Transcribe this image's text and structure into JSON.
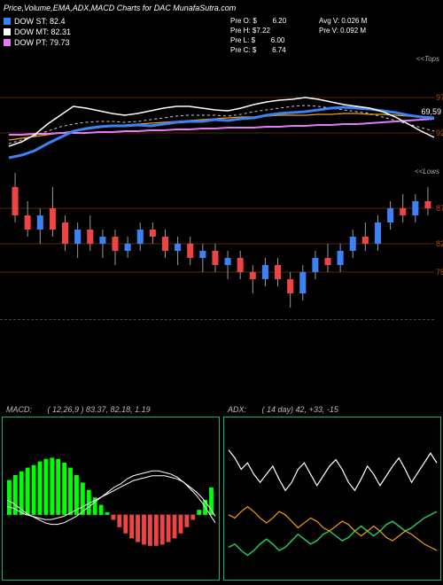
{
  "title": "Price,Volume,EMA,ADX,MACD Charts for DAC MunafaSutra.com",
  "legend": [
    {
      "label": "DOW ST: 82.4",
      "color": "#3b82f6"
    },
    {
      "label": "DOW MT: 82.31",
      "color": "#ffffff"
    },
    {
      "label": "DOW PT: 79.73",
      "color": "#e879f9"
    }
  ],
  "pre": {
    "o": {
      "k": "Pre   O: $",
      "v": "6.20"
    },
    "h": {
      "k": "Pre   H: $7.22",
      "v": ""
    },
    "l": {
      "k": "Pre   L: $",
      "v": "6.00"
    },
    "c": {
      "k": "Pre   C: $",
      "v": "6.74"
    }
  },
  "avg": {
    "v1": {
      "k": "Avg V: 0.026  M",
      "v": ""
    },
    "v2": {
      "k": "Pre  V: 0.092  M",
      "v": ""
    }
  },
  "ema_axis": {
    "top": "<<Tops",
    "bot": "<<Lows",
    "tag": "69,59",
    "grid": [
      "97",
      "92"
    ]
  },
  "ema_lines": {
    "colors": {
      "white": "#ffffff",
      "blue": "#3b82f6",
      "magenta": "#e879f9",
      "orange": "#f59e0b",
      "dash": "#cccccc"
    },
    "blue": [
      108,
      105,
      100,
      92,
      85,
      78,
      75,
      73,
      72,
      72,
      71,
      72,
      70,
      68,
      67,
      67,
      65,
      66,
      64,
      63,
      60,
      58,
      57,
      56,
      54,
      52,
      51,
      52,
      53,
      55,
      57,
      60,
      62,
      63
    ],
    "white": [
      95,
      90,
      82,
      70,
      60,
      50,
      52,
      55,
      58,
      60,
      58,
      55,
      52,
      50,
      50,
      52,
      54,
      55,
      52,
      48,
      45,
      43,
      42,
      40,
      42,
      45,
      48,
      50,
      52,
      56,
      62,
      70,
      78,
      85
    ],
    "magenta": [
      38,
      38,
      39,
      39,
      40,
      40,
      40,
      41,
      41,
      42,
      42,
      43,
      43,
      44,
      44,
      45,
      45,
      46,
      46,
      46,
      47,
      47,
      48,
      48,
      49,
      49,
      50,
      50,
      51,
      52,
      53,
      54,
      55,
      56
    ],
    "orange": [
      88,
      86,
      84,
      82,
      80,
      78,
      76,
      74,
      72,
      71,
      70,
      69,
      68,
      67,
      66,
      65,
      64,
      63,
      62,
      62,
      61,
      60,
      60,
      60,
      59,
      59,
      58,
      58,
      59,
      59,
      60,
      61,
      62,
      64
    ],
    "dash": [
      92,
      88,
      83,
      78,
      73,
      70,
      68,
      67,
      67,
      68,
      67,
      65,
      63,
      61,
      60,
      60,
      60,
      61,
      59,
      56,
      54,
      52,
      50,
      49,
      50,
      52,
      54,
      56,
      58,
      62,
      66,
      70,
      74,
      78
    ]
  },
  "candle": {
    "grid": [
      "87",
      "82",
      "78"
    ],
    "data": [
      {
        "o": 90,
        "c": 86,
        "h": 92,
        "l": 85
      },
      {
        "o": 86,
        "c": 84,
        "h": 88,
        "l": 83
      },
      {
        "o": 84,
        "c": 86,
        "h": 87,
        "l": 82
      },
      {
        "o": 87,
        "c": 84,
        "h": 90,
        "l": 83
      },
      {
        "o": 85,
        "c": 82,
        "h": 86,
        "l": 81
      },
      {
        "o": 82,
        "c": 84,
        "h": 85,
        "l": 80
      },
      {
        "o": 84,
        "c": 82,
        "h": 86,
        "l": 81
      },
      {
        "o": 82,
        "c": 83,
        "h": 84,
        "l": 80
      },
      {
        "o": 83,
        "c": 81,
        "h": 84,
        "l": 79
      },
      {
        "o": 81,
        "c": 82,
        "h": 83,
        "l": 80
      },
      {
        "o": 82,
        "c": 84,
        "h": 85,
        "l": 81
      },
      {
        "o": 84,
        "c": 83,
        "h": 85,
        "l": 82
      },
      {
        "o": 83,
        "c": 81,
        "h": 84,
        "l": 80
      },
      {
        "o": 81,
        "c": 82,
        "h": 83,
        "l": 79
      },
      {
        "o": 82,
        "c": 80,
        "h": 83,
        "l": 79
      },
      {
        "o": 80,
        "c": 81,
        "h": 82,
        "l": 78
      },
      {
        "o": 81,
        "c": 79,
        "h": 82,
        "l": 78
      },
      {
        "o": 79,
        "c": 80,
        "h": 81,
        "l": 77
      },
      {
        "o": 80,
        "c": 78,
        "h": 81,
        "l": 77
      },
      {
        "o": 78,
        "c": 77,
        "h": 79,
        "l": 75
      },
      {
        "o": 77,
        "c": 79,
        "h": 80,
        "l": 76
      },
      {
        "o": 79,
        "c": 77,
        "h": 80,
        "l": 76
      },
      {
        "o": 77,
        "c": 75,
        "h": 78,
        "l": 73
      },
      {
        "o": 75,
        "c": 78,
        "h": 79,
        "l": 74
      },
      {
        "o": 78,
        "c": 80,
        "h": 81,
        "l": 77
      },
      {
        "o": 80,
        "c": 79,
        "h": 82,
        "l": 78
      },
      {
        "o": 79,
        "c": 81,
        "h": 82,
        "l": 78
      },
      {
        "o": 81,
        "c": 83,
        "h": 84,
        "l": 80
      },
      {
        "o": 83,
        "c": 82,
        "h": 85,
        "l": 81
      },
      {
        "o": 82,
        "c": 85,
        "h": 86,
        "l": 81
      },
      {
        "o": 85,
        "c": 87,
        "h": 88,
        "l": 84
      },
      {
        "o": 87,
        "c": 86,
        "h": 89,
        "l": 85
      },
      {
        "o": 86,
        "c": 88,
        "h": 89,
        "l": 85
      },
      {
        "o": 88,
        "c": 87,
        "h": 90,
        "l": 86
      }
    ],
    "scale": {
      "min": 72,
      "max": 92
    },
    "colors": {
      "up": "#3b82f6",
      "down": "#ef4444",
      "wick": "#999"
    }
  },
  "macd": {
    "label": "MACD:",
    "params": "( 12,26,9 ) 83.37,  82.18,   1.19",
    "hist": [
      28,
      32,
      35,
      38,
      40,
      43,
      45,
      46,
      45,
      42,
      38,
      32,
      26,
      20,
      14,
      8,
      2,
      -4,
      -10,
      -15,
      -19,
      -22,
      -24,
      -25,
      -25,
      -24,
      -22,
      -19,
      -15,
      -10,
      -4,
      4,
      12,
      22
    ],
    "line1": [
      60,
      58,
      55,
      52,
      50,
      48,
      46,
      45,
      45,
      46,
      48,
      50,
      53,
      56,
      59,
      62,
      65,
      68,
      70,
      73,
      75,
      76,
      77,
      78,
      78,
      77,
      76,
      74,
      71,
      67,
      63,
      58,
      52,
      46
    ],
    "line2": [
      56,
      55,
      53,
      51,
      50,
      49,
      48,
      48,
      49,
      50,
      52,
      54,
      56,
      58,
      60,
      62,
      64,
      66,
      68,
      70,
      72,
      73,
      74,
      75,
      75,
      75,
      74,
      73,
      71,
      68,
      65,
      61,
      56,
      50
    ],
    "colors": {
      "pos": "#00ff00",
      "neg": "#ef4444",
      "line": "#ffffff"
    }
  },
  "adx": {
    "label": "ADX:",
    "params": "( 14   day) 42,   +33,  -15",
    "adx": [
      80,
      75,
      68,
      72,
      65,
      60,
      65,
      70,
      62,
      55,
      60,
      68,
      72,
      65,
      58,
      64,
      70,
      74,
      68,
      60,
      55,
      62,
      70,
      65,
      58,
      64,
      70,
      75,
      68,
      60,
      66,
      72,
      78,
      72
    ],
    "plus": [
      20,
      22,
      18,
      15,
      18,
      22,
      25,
      22,
      18,
      20,
      24,
      28,
      25,
      22,
      24,
      28,
      30,
      27,
      24,
      26,
      30,
      33,
      30,
      27,
      30,
      34,
      36,
      33,
      30,
      32,
      35,
      38,
      40,
      42
    ],
    "minus": [
      40,
      38,
      42,
      45,
      42,
      38,
      35,
      38,
      42,
      40,
      36,
      32,
      35,
      38,
      36,
      32,
      30,
      33,
      36,
      34,
      30,
      27,
      30,
      33,
      30,
      26,
      24,
      27,
      30,
      28,
      25,
      22,
      20,
      18
    ],
    "colors": {
      "adx": "#ffffff",
      "plus": "#22c55e",
      "minus": "#f59e0b"
    }
  }
}
